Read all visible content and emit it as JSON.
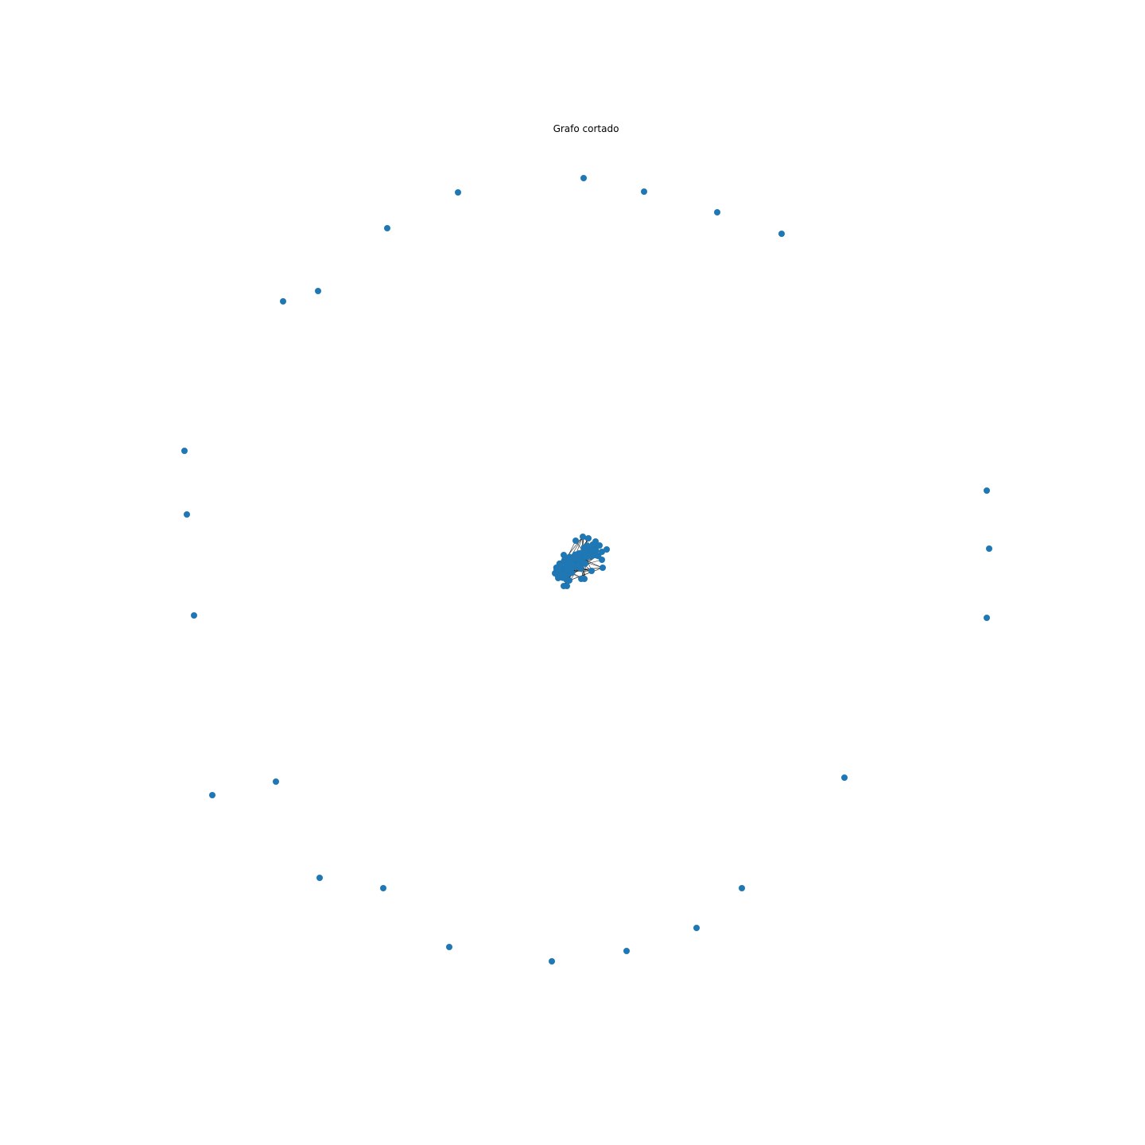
{
  "title": "Grafo cortado",
  "colors": {
    "node": "#1f77b4",
    "edge": "#000000",
    "background": "#ffffff"
  }
}
